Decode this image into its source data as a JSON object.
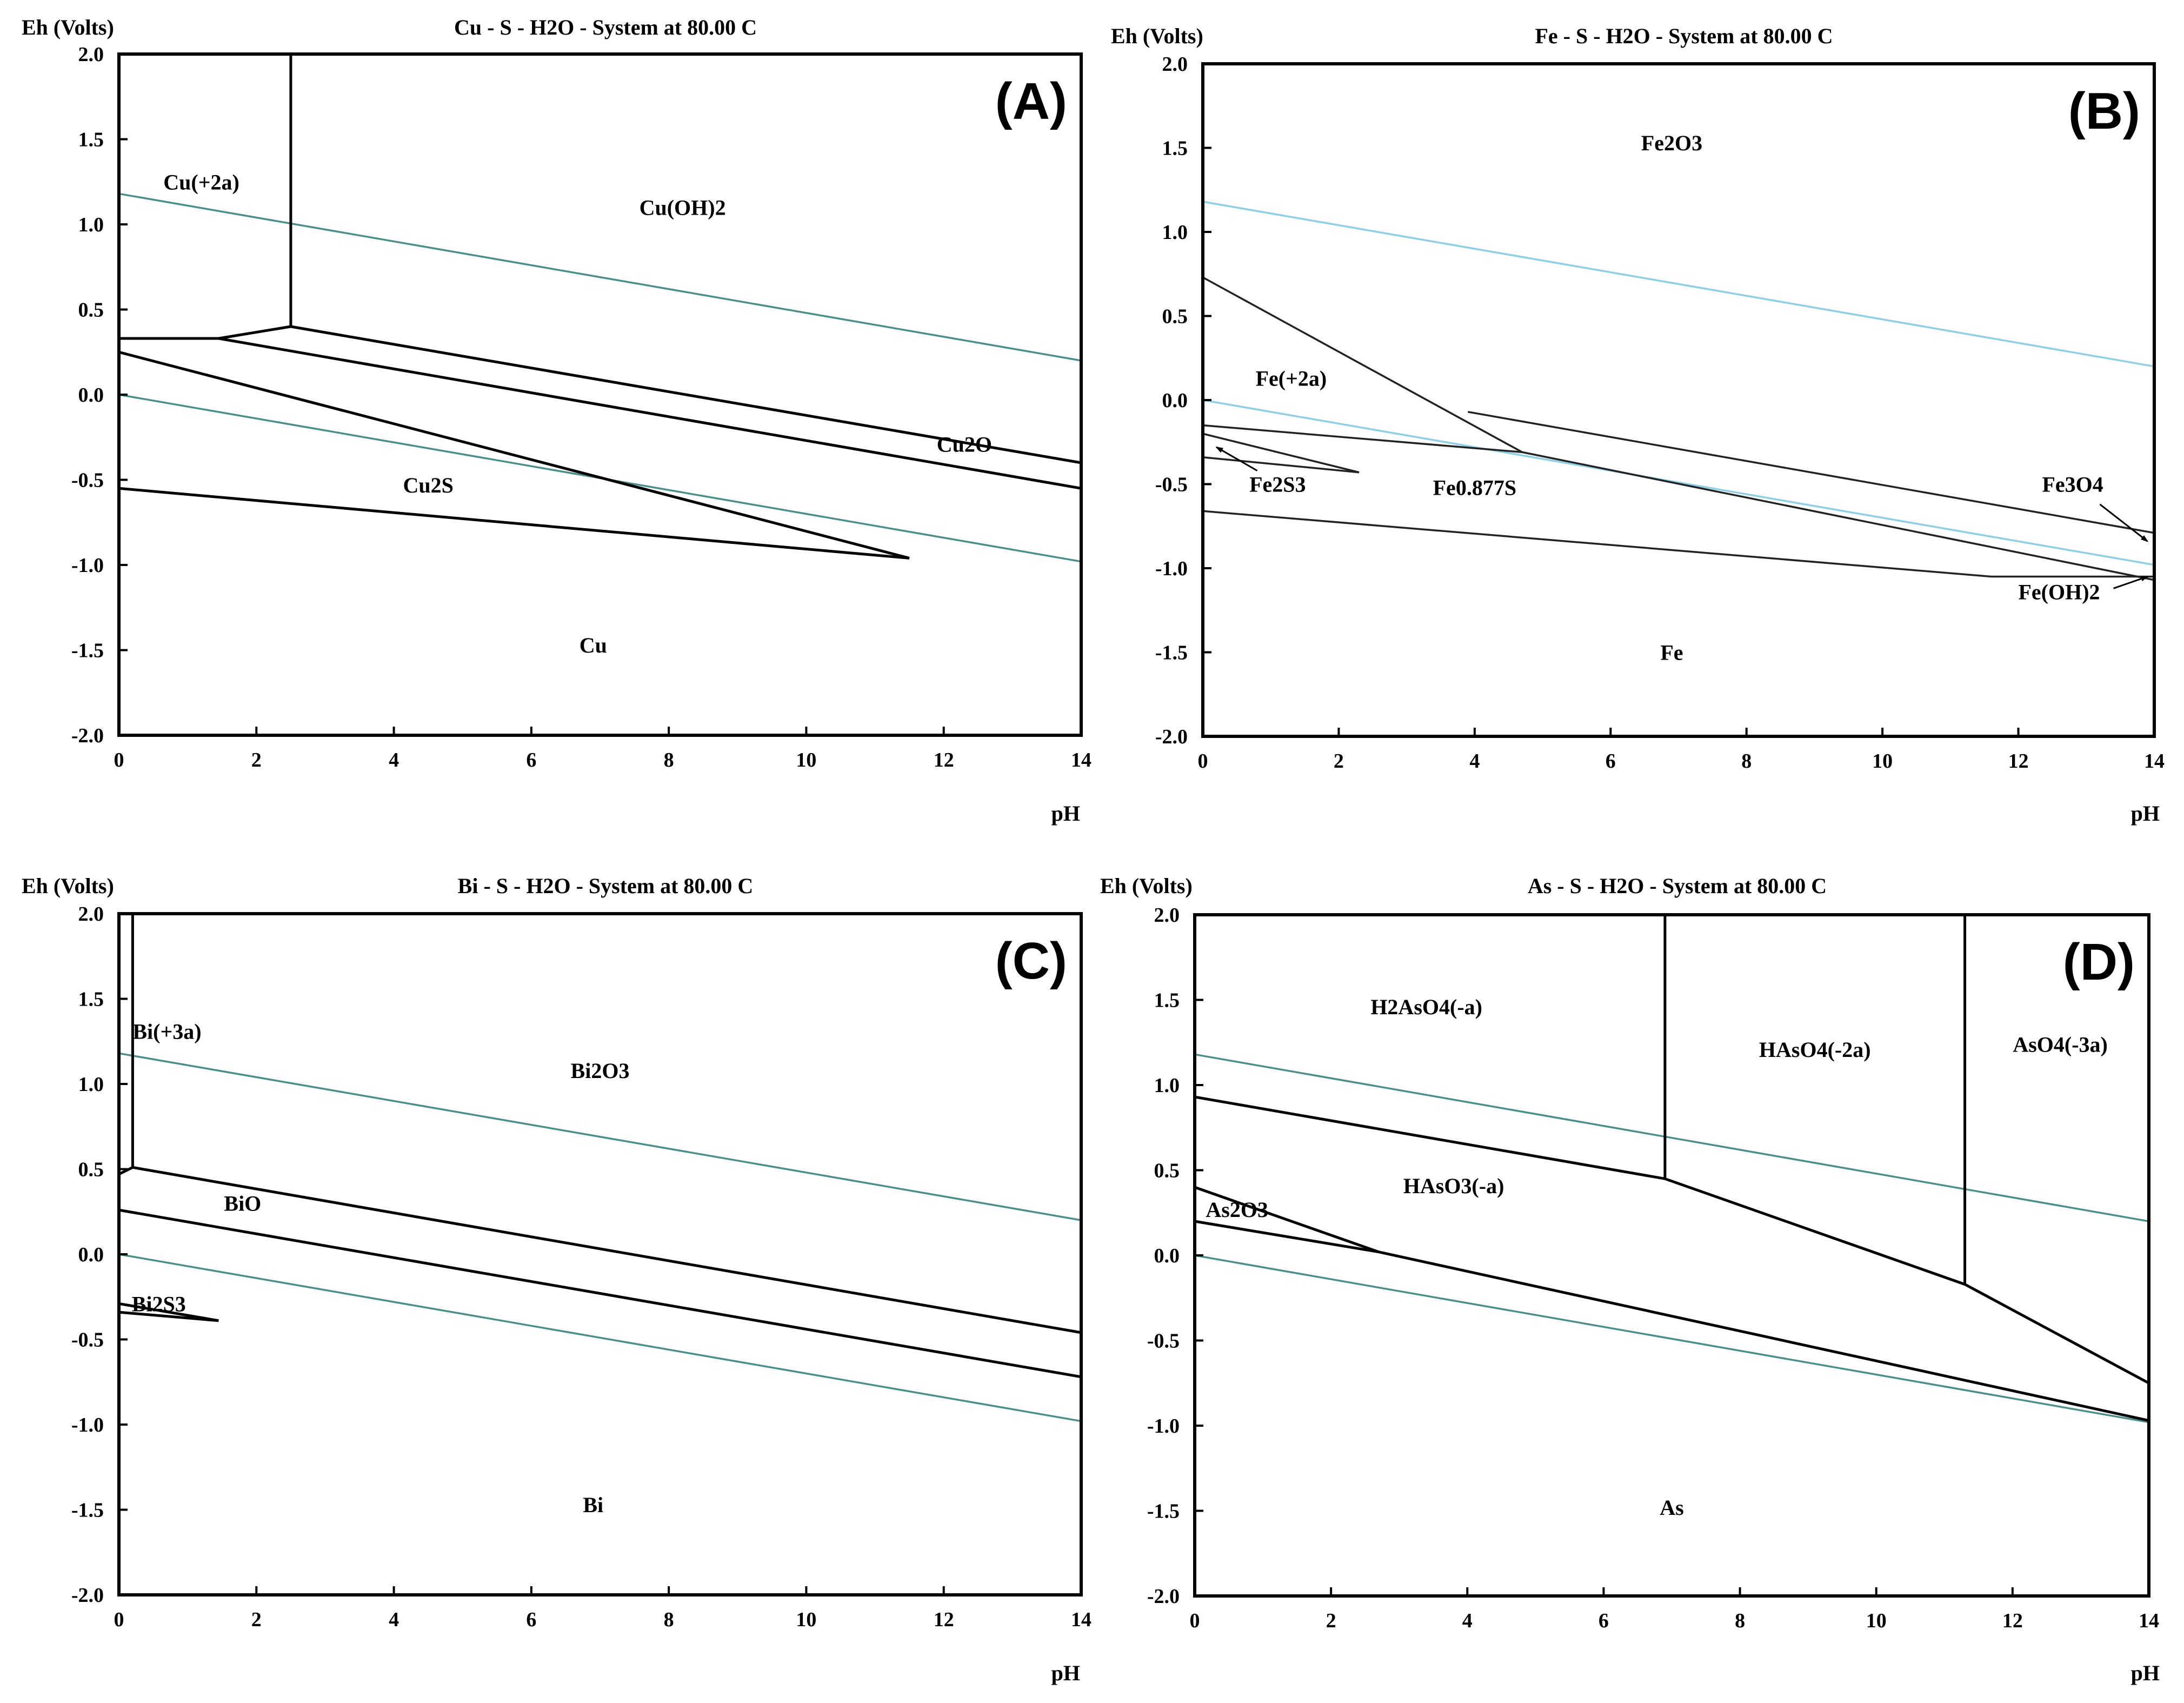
{
  "colors": {
    "frame": "#000000",
    "boundary": "#000000",
    "water_line_teal": "#4a8f8a",
    "water_line_light": "#8ecfe6"
  },
  "chart_data": [
    {
      "panel": "(A)",
      "type": "line",
      "title": "Cu - S - H2O - System at 80.00 C",
      "ylabel": "Eh (Volts)",
      "xlabel": "pH",
      "xlim": [
        0,
        14
      ],
      "ylim": [
        -2.0,
        2.0
      ],
      "xticks": [
        0,
        2,
        4,
        6,
        8,
        10,
        12,
        14
      ],
      "yticks": [
        2.0,
        1.5,
        1.0,
        0.5,
        0.0,
        -0.5,
        -1.0,
        -1.5,
        -2.0
      ],
      "ytick_labels": [
        "2.0",
        "1.5",
        "1.0",
        "0.5",
        "0.0",
        "-0.5",
        "-1.0",
        "-1.5",
        "-2.0"
      ],
      "water_color": "teal",
      "water_lines": [
        {
          "name": "O2/H2O",
          "points": [
            [
              0,
              1.18
            ],
            [
              14,
              0.2
            ]
          ]
        },
        {
          "name": "H2O/H2",
          "points": [
            [
              0,
              0.0
            ],
            [
              14,
              -0.98
            ]
          ]
        }
      ],
      "boundaries": [
        {
          "points": [
            [
              2.5,
              2.0
            ],
            [
              2.5,
              0.4
            ]
          ]
        },
        {
          "points": [
            [
              0,
              0.33
            ],
            [
              1.45,
              0.33
            ],
            [
              2.5,
              0.4
            ],
            [
              14,
              -0.4
            ]
          ]
        },
        {
          "points": [
            [
              1.45,
              0.33
            ],
            [
              14,
              -0.55
            ]
          ]
        },
        {
          "points": [
            [
              0,
              0.25
            ],
            [
              11.5,
              -0.96
            ]
          ]
        },
        {
          "points": [
            [
              0,
              -0.55
            ],
            [
              11.5,
              -0.96
            ]
          ]
        }
      ],
      "region_labels": [
        {
          "text": "Cu(+2a)",
          "x": 1.2,
          "y": 1.25
        },
        {
          "text": "Cu(OH)2",
          "x": 8.2,
          "y": 1.1
        },
        {
          "text": "Cu2O",
          "x": 12.3,
          "y": -0.29
        },
        {
          "text": "Cu2S",
          "x": 4.5,
          "y": -0.53
        },
        {
          "text": "Cu",
          "x": 6.9,
          "y": -1.47
        }
      ]
    },
    {
      "panel": "(B)",
      "type": "line",
      "title": "Fe - S - H2O - System at 80.00 C",
      "ylabel": "Eh (Volts)",
      "xlabel": "pH",
      "xlim": [
        0,
        14
      ],
      "ylim": [
        -2.0,
        2.0
      ],
      "xticks": [
        0,
        2,
        4,
        6,
        8,
        10,
        12,
        14
      ],
      "yticks": [
        2.0,
        1.5,
        1.0,
        0.5,
        0.0,
        -0.5,
        -1.0,
        -1.5,
        -2.0
      ],
      "ytick_labels": [
        "2.0",
        "1.5",
        "1.0",
        "0.5",
        "0.0",
        "-0.5",
        "-1.0",
        "-1.5",
        "-2.0"
      ],
      "water_color": "light",
      "water_lines": [
        {
          "name": "O2/H2O",
          "points": [
            [
              0,
              1.18
            ],
            [
              14,
              0.2
            ]
          ]
        },
        {
          "name": "H2O/H2",
          "points": [
            [
              0,
              0.0
            ],
            [
              14,
              -0.98
            ]
          ]
        }
      ],
      "boundaries": [
        {
          "points": [
            [
              0,
              0.73
            ],
            [
              4.7,
              -0.31
            ]
          ],
          "thin": true
        },
        {
          "points": [
            [
              0,
              -0.15
            ],
            [
              4.7,
              -0.31
            ],
            [
              14,
              -1.07
            ]
          ],
          "thin": true
        },
        {
          "points": [
            [
              3.9,
              -0.07
            ],
            [
              14,
              -0.79
            ]
          ],
          "thin": true
        },
        {
          "points": [
            [
              0,
              -0.2
            ],
            [
              2.3,
              -0.43
            ]
          ],
          "thin": true
        },
        {
          "points": [
            [
              0,
              -0.34
            ],
            [
              2.3,
              -0.43
            ]
          ],
          "thin": true
        },
        {
          "points": [
            [
              0,
              -0.66
            ],
            [
              11.6,
              -1.05
            ],
            [
              14,
              -1.05
            ]
          ],
          "thin": true
        }
      ],
      "arrows": [
        {
          "from": [
            0.8,
            -0.42
          ],
          "to": [
            0.2,
            -0.28
          ]
        },
        {
          "from": [
            13.2,
            -0.62
          ],
          "to": [
            13.9,
            -0.84
          ]
        },
        {
          "from": [
            13.4,
            -1.12
          ],
          "to": [
            13.9,
            -1.05
          ]
        }
      ],
      "region_labels": [
        {
          "text": "Fe2O3",
          "x": 6.9,
          "y": 1.53
        },
        {
          "text": "Fe(+2a)",
          "x": 1.3,
          "y": 0.13
        },
        {
          "text": "Fe2S3",
          "x": 1.1,
          "y": -0.5
        },
        {
          "text": "Fe0.877S",
          "x": 4.0,
          "y": -0.52
        },
        {
          "text": "Fe3O4",
          "x": 12.8,
          "y": -0.5
        },
        {
          "text": "Fe(OH)2",
          "x": 12.6,
          "y": -1.14
        },
        {
          "text": "Fe",
          "x": 6.9,
          "y": -1.5
        }
      ]
    },
    {
      "panel": "(C)",
      "type": "line",
      "title": "Bi - S - H2O - System at 80.00 C",
      "ylabel": "Eh (Volts)",
      "xlabel": "pH",
      "xlim": [
        0,
        14
      ],
      "ylim": [
        -2.0,
        2.0
      ],
      "xticks": [
        0,
        2,
        4,
        6,
        8,
        10,
        12,
        14
      ],
      "yticks": [
        2.0,
        1.5,
        1.0,
        0.5,
        0.0,
        -0.5,
        -1.0,
        -1.5,
        -2.0
      ],
      "ytick_labels": [
        "2.0",
        "1.5",
        "1.0",
        "0.5",
        "0.0",
        "-0.5",
        "-1.0",
        "-1.5",
        "-2.0"
      ],
      "water_color": "teal",
      "water_lines": [
        {
          "name": "O2/H2O",
          "points": [
            [
              0,
              1.18
            ],
            [
              14,
              0.2
            ]
          ]
        },
        {
          "name": "H2O/H2",
          "points": [
            [
              0,
              0.0
            ],
            [
              14,
              -0.98
            ]
          ]
        }
      ],
      "boundaries": [
        {
          "points": [
            [
              0.2,
              2.0
            ],
            [
              0.2,
              0.51
            ]
          ]
        },
        {
          "points": [
            [
              0,
              0.47
            ],
            [
              0.2,
              0.51
            ],
            [
              14,
              -0.46
            ]
          ]
        },
        {
          "points": [
            [
              0,
              0.26
            ],
            [
              14,
              -0.72
            ]
          ]
        },
        {
          "points": [
            [
              0,
              -0.29
            ],
            [
              1.45,
              -0.39
            ]
          ]
        },
        {
          "points": [
            [
              0,
              -0.34
            ],
            [
              1.45,
              -0.39
            ]
          ]
        }
      ],
      "region_labels": [
        {
          "text": "Bi(+3a)",
          "x": 0.7,
          "y": 1.31
        },
        {
          "text": "Bi2O3",
          "x": 7.0,
          "y": 1.08
        },
        {
          "text": "BiO",
          "x": 1.8,
          "y": 0.3
        },
        {
          "text": "Bi2S3",
          "x": 0.58,
          "y": -0.29
        },
        {
          "text": "Bi",
          "x": 6.9,
          "y": -1.47
        }
      ]
    },
    {
      "panel": "(D)",
      "type": "line",
      "title": "As - S - H2O - System at 80.00 C",
      "ylabel": "Eh (Volts)",
      "xlabel": "pH",
      "xlim": [
        0,
        14
      ],
      "ylim": [
        -2.0,
        2.0
      ],
      "xticks": [
        0,
        2,
        4,
        6,
        8,
        10,
        12,
        14
      ],
      "yticks": [
        2.0,
        1.5,
        1.0,
        0.5,
        0.0,
        -0.5,
        -1.0,
        -1.5,
        -2.0
      ],
      "ytick_labels": [
        "2.0",
        "1.5",
        "1.0",
        "0.5",
        "0.0",
        "-0.5",
        "-1.0",
        "-1.5",
        "-2.0"
      ],
      "water_color": "teal",
      "water_lines": [
        {
          "name": "O2/H2O",
          "points": [
            [
              0,
              1.18
            ],
            [
              14,
              0.2
            ]
          ]
        },
        {
          "name": "H2O/H2",
          "points": [
            [
              0,
              0.0
            ],
            [
              14,
              -0.98
            ]
          ]
        }
      ],
      "boundaries": [
        {
          "points": [
            [
              6.9,
              2.0
            ],
            [
              6.9,
              0.45
            ]
          ]
        },
        {
          "points": [
            [
              11.3,
              2.0
            ],
            [
              11.3,
              -0.17
            ]
          ]
        },
        {
          "points": [
            [
              0,
              0.93
            ],
            [
              6.9,
              0.45
            ],
            [
              11.3,
              -0.17
            ],
            [
              14,
              -0.75
            ]
          ]
        },
        {
          "points": [
            [
              0,
              0.4
            ],
            [
              2.7,
              0.02
            ]
          ]
        },
        {
          "points": [
            [
              0,
              0.2
            ],
            [
              2.7,
              0.02
            ],
            [
              14,
              -0.97
            ]
          ]
        }
      ],
      "region_labels": [
        {
          "text": "H2AsO4(-a)",
          "x": 3.4,
          "y": 1.46
        },
        {
          "text": "HAsO4(-2a)",
          "x": 9.1,
          "y": 1.21
        },
        {
          "text": "AsO4(-3a)",
          "x": 12.7,
          "y": 1.24
        },
        {
          "text": "HAsO3(-a)",
          "x": 3.8,
          "y": 0.41
        },
        {
          "text": "As2O3",
          "x": 0.62,
          "y": 0.27
        },
        {
          "text": "As",
          "x": 7.0,
          "y": -1.48
        }
      ]
    }
  ]
}
